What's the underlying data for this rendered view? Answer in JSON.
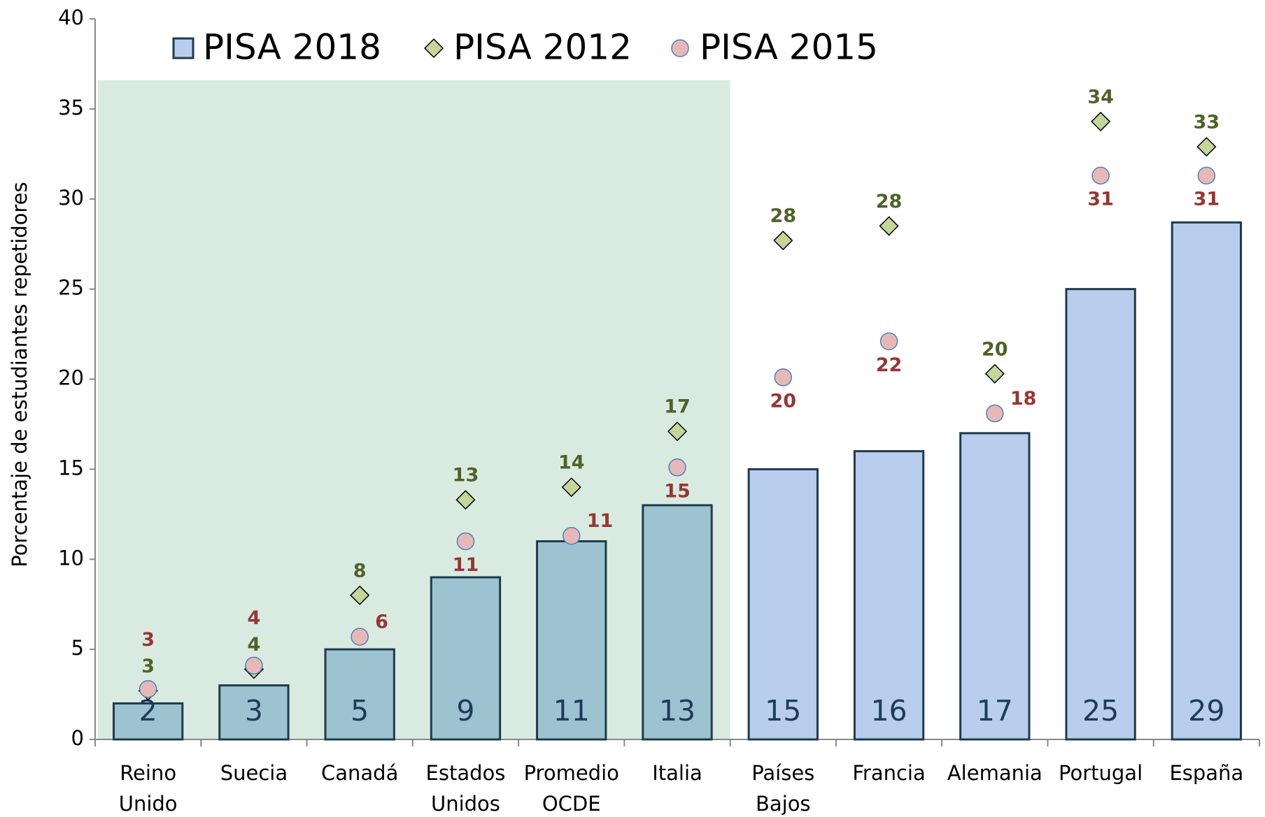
{
  "chart_data": {
    "type": "bar",
    "y_axis_label": "Porcentaje de estudiantes repetidores",
    "categories": [
      "Reino Unido",
      "Suecia",
      "Canadá",
      "Estados Unidos",
      "Promedio OCDE",
      "Italia",
      "Países Bajos",
      "Francia",
      "Alemania",
      "Portugal",
      "España"
    ],
    "ylim": [
      0,
      40
    ],
    "yticks": [
      0,
      5,
      10,
      15,
      20,
      25,
      30,
      35,
      40
    ],
    "highlight": {
      "categories": 6,
      "top": 36.6,
      "color": "#d9ebe0",
      "bar_color": "#9dc3d1"
    },
    "series": [
      {
        "name": "PISA 2018",
        "kind": "bar",
        "color": "#b9cdee",
        "stroke": "#1f3b4d",
        "label_color": "#1f3b5a",
        "values": [
          2,
          3,
          5,
          9,
          11,
          13,
          15,
          16,
          17,
          25,
          28.7
        ],
        "value_labels": [
          "2",
          "3",
          "5",
          "9",
          "11",
          "13",
          "15",
          "16",
          "17",
          "25",
          "29"
        ]
      },
      {
        "name": "PISA 2012",
        "kind": "diamond",
        "color": "#c3d69b",
        "stroke": "#000000",
        "label_color": "#4f6228",
        "values": [
          2.7,
          3.9,
          8,
          13.3,
          14,
          17.1,
          27.7,
          28.5,
          20.3,
          34.3,
          32.9
        ],
        "value_labels": [
          "3",
          "4",
          "8",
          "13",
          "14",
          "17",
          "28",
          "28",
          "20",
          "34",
          "33"
        ]
      },
      {
        "name": "PISA 2015",
        "kind": "circle",
        "color": "#e6b9b8",
        "stroke": "#4f81bd",
        "label_color": "#953735",
        "values": [
          2.8,
          4.1,
          5.7,
          11,
          11.3,
          15.1,
          20.1,
          22.1,
          18.1,
          31.3,
          31.3
        ],
        "value_labels": [
          "3",
          "4",
          "6",
          "11",
          "11",
          "15",
          "20",
          "22",
          "18",
          "31",
          "31"
        ]
      }
    ]
  }
}
